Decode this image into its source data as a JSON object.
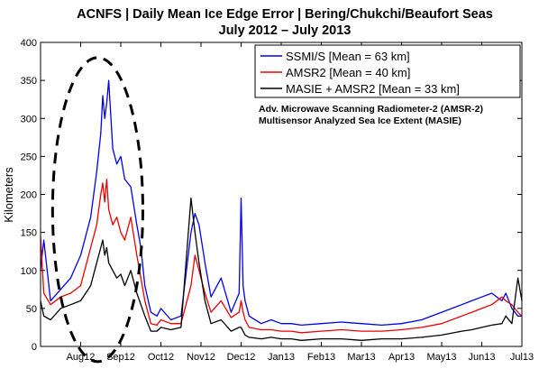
{
  "chart_data": {
    "type": "line",
    "title": "ACNFS  |  Daily Mean Ice Edge Error  |  Bering/Chukchi/Beaufort Seas",
    "subtitle": "July 2012 – July 2013",
    "ylabel": "Kilometers",
    "xlabel": "",
    "ylim": [
      0,
      400
    ],
    "yticks": [
      0,
      50,
      100,
      150,
      200,
      250,
      300,
      350,
      400
    ],
    "x_tick_labels": [
      "Aug12",
      "Sep12",
      "Oct12",
      "Nov12",
      "Dec12",
      "Jan13",
      "Feb13",
      "Mar13",
      "Apr13",
      "May13",
      "Jun13",
      "Jul13"
    ],
    "x_tick_positions": [
      1,
      2,
      3,
      4,
      5,
      6,
      7,
      8,
      9,
      10,
      11,
      12
    ],
    "x_range": [
      0,
      12
    ],
    "legend_position": "top-right",
    "legend_color_key": "color",
    "series": [
      {
        "name": "SSMI/S [Mean = 63 km]",
        "color": "#0000ee",
        "x": [
          0.0,
          0.08,
          0.25,
          0.5,
          0.75,
          1.0,
          1.25,
          1.4,
          1.5,
          1.55,
          1.6,
          1.65,
          1.7,
          1.8,
          1.9,
          2.0,
          2.1,
          2.25,
          2.4,
          2.5,
          2.6,
          2.75,
          2.9,
          3.0,
          3.25,
          3.5,
          3.75,
          3.85,
          3.95,
          4.1,
          4.25,
          4.5,
          4.75,
          4.95,
          5.0,
          5.05,
          5.1,
          5.2,
          5.5,
          5.75,
          6.0,
          6.25,
          6.5,
          7.0,
          7.5,
          8.0,
          8.5,
          9.0,
          9.5,
          10.0,
          10.5,
          10.75,
          11.0,
          11.25,
          11.5,
          11.6,
          11.75,
          11.9,
          12.0
        ],
        "y": [
          100,
          140,
          60,
          75,
          90,
          120,
          170,
          230,
          280,
          330,
          300,
          320,
          350,
          260,
          240,
          250,
          220,
          210,
          160,
          130,
          80,
          45,
          40,
          50,
          35,
          40,
          150,
          175,
          160,
          110,
          65,
          90,
          45,
          70,
          195,
          80,
          60,
          40,
          30,
          35,
          30,
          30,
          28,
          30,
          32,
          30,
          28,
          30,
          35,
          45,
          55,
          60,
          65,
          70,
          60,
          70,
          50,
          40,
          40
        ]
      },
      {
        "name": "AMSR2 [Mean = 40 km]",
        "color": "#ee0000",
        "x": [
          0.0,
          0.08,
          0.25,
          0.5,
          0.75,
          1.0,
          1.25,
          1.4,
          1.5,
          1.55,
          1.6,
          1.65,
          1.7,
          1.8,
          1.9,
          2.0,
          2.1,
          2.25,
          2.4,
          2.5,
          2.6,
          2.75,
          2.9,
          3.0,
          3.25,
          3.5,
          3.75,
          3.85,
          3.95,
          4.1,
          4.25,
          4.5,
          4.75,
          4.95,
          5.0,
          5.05,
          5.1,
          5.2,
          5.5,
          5.75,
          6.0,
          6.25,
          6.5,
          7.0,
          7.5,
          8.0,
          8.5,
          9.0,
          9.5,
          10.0,
          10.5,
          10.75,
          11.0,
          11.25,
          11.5,
          11.6,
          11.75,
          11.9,
          12.0
        ],
        "y": [
          145,
          70,
          55,
          65,
          70,
          80,
          130,
          160,
          200,
          215,
          190,
          220,
          180,
          160,
          170,
          150,
          140,
          170,
          120,
          90,
          60,
          30,
          28,
          35,
          30,
          30,
          80,
          120,
          100,
          70,
          45,
          60,
          38,
          45,
          60,
          45,
          35,
          25,
          22,
          22,
          20,
          20,
          18,
          20,
          22,
          20,
          20,
          22,
          25,
          30,
          40,
          45,
          50,
          55,
          65,
          60,
          55,
          45,
          40
        ]
      },
      {
        "name": "MASIE + AMSR2 [Mean = 33 km]",
        "color": "#000000",
        "x": [
          0.0,
          0.08,
          0.25,
          0.5,
          0.75,
          1.0,
          1.25,
          1.4,
          1.5,
          1.55,
          1.6,
          1.65,
          1.7,
          1.8,
          1.9,
          2.0,
          2.1,
          2.25,
          2.4,
          2.5,
          2.6,
          2.75,
          2.9,
          3.0,
          3.25,
          3.5,
          3.75,
          3.85,
          3.95,
          4.1,
          4.25,
          4.5,
          4.75,
          4.95,
          5.0,
          5.05,
          5.1,
          5.2,
          5.5,
          5.75,
          6.0,
          6.25,
          6.5,
          7.0,
          7.5,
          8.0,
          8.5,
          9.0,
          9.5,
          10.0,
          10.5,
          10.75,
          11.0,
          11.25,
          11.5,
          11.6,
          11.75,
          11.9,
          12.0
        ],
        "y": [
          60,
          40,
          35,
          50,
          55,
          60,
          80,
          110,
          130,
          140,
          120,
          130,
          110,
          100,
          90,
          95,
          80,
          100,
          70,
          55,
          40,
          20,
          20,
          25,
          22,
          25,
          195,
          150,
          110,
          60,
          30,
          35,
          20,
          25,
          25,
          20,
          15,
          12,
          10,
          12,
          10,
          10,
          8,
          10,
          10,
          8,
          10,
          10,
          12,
          15,
          20,
          22,
          25,
          28,
          30,
          40,
          30,
          90,
          60
        ]
      }
    ],
    "annotations": [
      "Adv. Microwave Scanning Radiometer-2 (AMSR-2)",
      "Multisensor Analyzed Sea Ice Extent (MASIE)"
    ],
    "highlight": {
      "shape": "dashed-ellipse",
      "x_range": [
        0.3,
        2.55
      ],
      "y_range": [
        -20,
        380
      ]
    },
    "grid": false
  }
}
